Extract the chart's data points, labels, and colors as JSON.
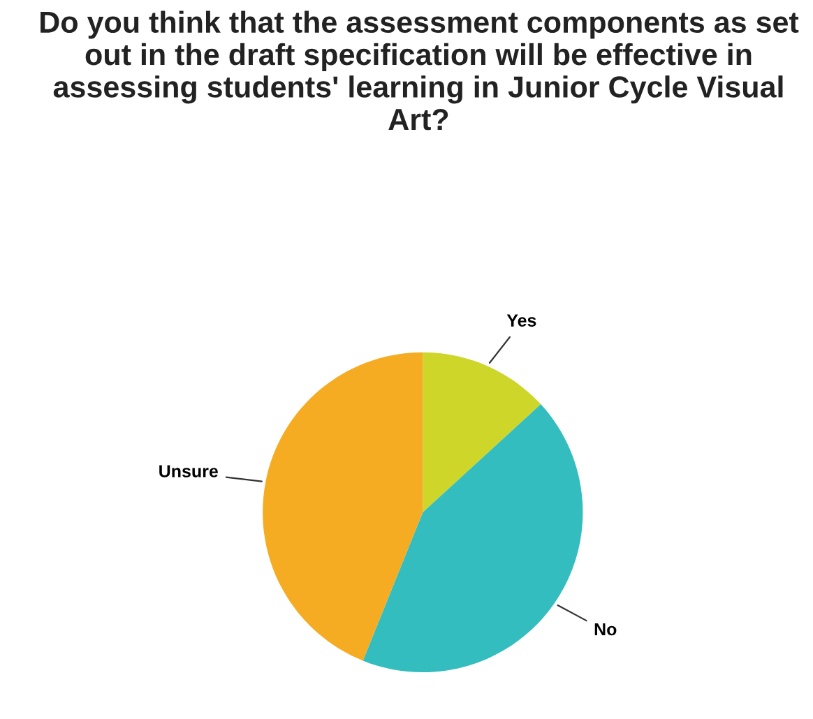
{
  "chart_data": {
    "type": "pie",
    "title": "Do you think that the assessment components as set out in the draft specification will be effective in assessing students' learning in Junior Cycle Visual Art?",
    "categories": [
      "Yes",
      "No",
      "Unsure"
    ],
    "values": [
      13.2,
      42.9,
      43.9
    ],
    "colors": [
      "#cfd62a",
      "#33bdbf",
      "#f5ac22"
    ]
  }
}
